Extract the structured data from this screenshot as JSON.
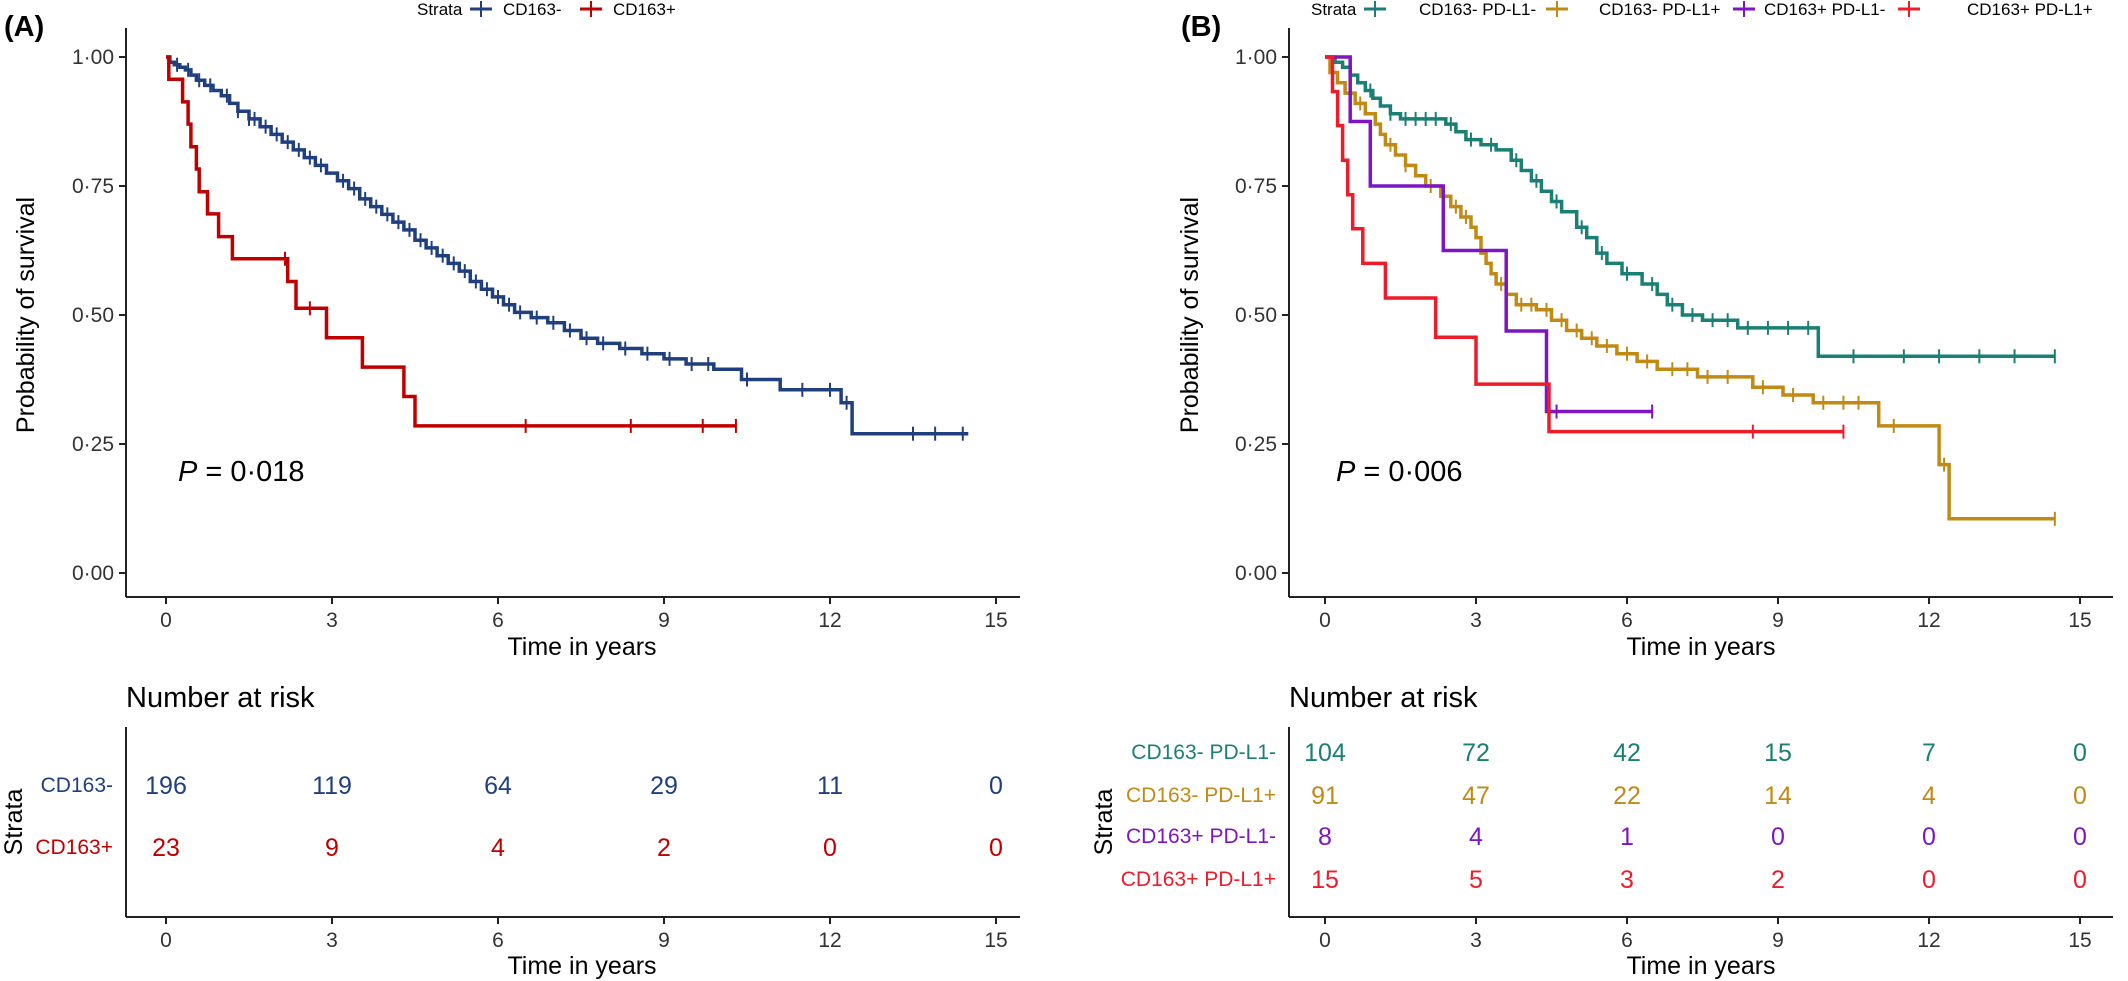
{
  "chart_data": [
    {
      "type": "line",
      "subtype": "kaplan-meier",
      "panel_label": "(A)",
      "xlabel": "Time in years",
      "ylabel": "Probability of survival",
      "xlim": [
        0,
        15
      ],
      "ylim": [
        0,
        1
      ],
      "xticks": [
        "0",
        "3",
        "6",
        "9",
        "12",
        "15"
      ],
      "yticks": [
        "0·00",
        "0·25",
        "0·50",
        "0·75",
        "1·00"
      ],
      "grid": false,
      "legend_title": "Strata",
      "legend_position": "top",
      "p_value_label": "P",
      "p_value_text": " = 0·018",
      "series": [
        {
          "name": "CD163-",
          "color": "#1f3f7f",
          "steps": [
            [
              0,
              1.0
            ],
            [
              0.07,
              0.99
            ],
            [
              0.15,
              0.985
            ],
            [
              0.25,
              0.98
            ],
            [
              0.35,
              0.975
            ],
            [
              0.45,
              0.965
            ],
            [
              0.55,
              0.955
            ],
            [
              0.7,
              0.945
            ],
            [
              0.85,
              0.935
            ],
            [
              1.0,
              0.925
            ],
            [
              1.15,
              0.91
            ],
            [
              1.3,
              0.895
            ],
            [
              1.5,
              0.88
            ],
            [
              1.7,
              0.865
            ],
            [
              1.9,
              0.85
            ],
            [
              2.1,
              0.835
            ],
            [
              2.3,
              0.82
            ],
            [
              2.5,
              0.805
            ],
            [
              2.7,
              0.79
            ],
            [
              2.9,
              0.775
            ],
            [
              3.1,
              0.76
            ],
            [
              3.3,
              0.745
            ],
            [
              3.5,
              0.725
            ],
            [
              3.7,
              0.71
            ],
            [
              3.9,
              0.695
            ],
            [
              4.1,
              0.68
            ],
            [
              4.3,
              0.665
            ],
            [
              4.5,
              0.645
            ],
            [
              4.7,
              0.63
            ],
            [
              4.9,
              0.615
            ],
            [
              5.1,
              0.6
            ],
            [
              5.3,
              0.585
            ],
            [
              5.5,
              0.565
            ],
            [
              5.7,
              0.55
            ],
            [
              5.9,
              0.535
            ],
            [
              6.1,
              0.52
            ],
            [
              6.3,
              0.505
            ],
            [
              6.6,
              0.495
            ],
            [
              6.9,
              0.485
            ],
            [
              7.2,
              0.47
            ],
            [
              7.5,
              0.455
            ],
            [
              7.8,
              0.445
            ],
            [
              8.2,
              0.435
            ],
            [
              8.6,
              0.425
            ],
            [
              9.0,
              0.415
            ],
            [
              9.4,
              0.405
            ],
            [
              9.9,
              0.395
            ],
            [
              10.4,
              0.375
            ],
            [
              11.1,
              0.355
            ],
            [
              12.2,
              0.33
            ],
            [
              12.4,
              0.27
            ],
            [
              14.5,
              0.27
            ]
          ],
          "censor": [
            0.2,
            0.4,
            0.6,
            0.8,
            1.1,
            1.3,
            1.5,
            1.6,
            1.8,
            2.0,
            2.2,
            2.4,
            2.6,
            2.8,
            3.2,
            3.4,
            3.6,
            3.8,
            4.0,
            4.2,
            4.4,
            4.6,
            4.8,
            5.0,
            5.2,
            5.4,
            5.6,
            5.8,
            6.0,
            6.2,
            6.4,
            6.7,
            7.0,
            7.3,
            7.6,
            7.9,
            8.3,
            8.7,
            9.1,
            9.5,
            9.8,
            10.5,
            11.5,
            12.0,
            12.3,
            13.5,
            13.9,
            14.4
          ]
        },
        {
          "name": "CD163+",
          "color": "#c00000",
          "steps": [
            [
              0,
              1.0
            ],
            [
              0.05,
              0.957
            ],
            [
              0.3,
              0.913
            ],
            [
              0.4,
              0.87
            ],
            [
              0.45,
              0.826
            ],
            [
              0.55,
              0.783
            ],
            [
              0.6,
              0.739
            ],
            [
              0.75,
              0.696
            ],
            [
              0.95,
              0.652
            ],
            [
              1.2,
              0.609
            ],
            [
              2.2,
              0.565
            ],
            [
              2.35,
              0.513
            ],
            [
              2.9,
              0.456
            ],
            [
              3.55,
              0.399
            ],
            [
              4.3,
              0.342
            ],
            [
              4.5,
              0.285
            ],
            [
              10.3,
              0.285
            ]
          ],
          "censor": [
            2.15,
            2.6,
            6.5,
            8.4,
            9.7,
            10.3
          ]
        }
      ],
      "risk_table": {
        "title": "Number at risk",
        "strata_title": "Strata",
        "times": [
          "0",
          "3",
          "6",
          "9",
          "12",
          "15"
        ],
        "rows": [
          {
            "label": "CD163-",
            "color": "#1f3f7f",
            "values": [
              "196",
              "119",
              "64",
              "29",
              "11",
              "0"
            ]
          },
          {
            "label": "CD163+",
            "color": "#c00000",
            "values": [
              "23",
              "9",
              "4",
              "2",
              "0",
              "0"
            ]
          }
        ],
        "xlabel": "Time in years"
      }
    },
    {
      "type": "line",
      "subtype": "kaplan-meier",
      "panel_label": "(B)",
      "xlabel": "Time in years",
      "ylabel": "Probability of survival",
      "xlim": [
        0,
        15
      ],
      "ylim": [
        0,
        1
      ],
      "xticks": [
        "0",
        "3",
        "6",
        "9",
        "12",
        "15"
      ],
      "yticks": [
        "0·00",
        "0·25",
        "0·50",
        "0·75",
        "1·00"
      ],
      "grid": false,
      "legend_title": "Strata",
      "legend_position": "top",
      "p_value_label": "P",
      "p_value_text": " = 0·006",
      "series": [
        {
          "name": "CD163- PD-L1-",
          "color": "#1a7f74",
          "steps": [
            [
              0,
              1.0
            ],
            [
              0.2,
              0.99
            ],
            [
              0.35,
              0.98
            ],
            [
              0.5,
              0.965
            ],
            [
              0.65,
              0.95
            ],
            [
              0.8,
              0.935
            ],
            [
              0.95,
              0.92
            ],
            [
              1.1,
              0.905
            ],
            [
              1.3,
              0.89
            ],
            [
              1.5,
              0.88
            ],
            [
              2.4,
              0.87
            ],
            [
              2.6,
              0.855
            ],
            [
              2.8,
              0.84
            ],
            [
              3.1,
              0.83
            ],
            [
              3.4,
              0.82
            ],
            [
              3.7,
              0.8
            ],
            [
              3.9,
              0.78
            ],
            [
              4.1,
              0.76
            ],
            [
              4.3,
              0.74
            ],
            [
              4.5,
              0.72
            ],
            [
              4.7,
              0.7
            ],
            [
              5.0,
              0.67
            ],
            [
              5.2,
              0.65
            ],
            [
              5.4,
              0.62
            ],
            [
              5.6,
              0.6
            ],
            [
              5.9,
              0.58
            ],
            [
              6.3,
              0.56
            ],
            [
              6.6,
              0.54
            ],
            [
              6.8,
              0.52
            ],
            [
              7.1,
              0.5
            ],
            [
              7.5,
              0.49
            ],
            [
              8.2,
              0.475
            ],
            [
              9.8,
              0.42
            ],
            [
              14.5,
              0.42
            ]
          ],
          "censor": [
            0.5,
            0.9,
            1.3,
            1.6,
            1.8,
            2.0,
            2.2,
            2.5,
            2.9,
            3.3,
            3.8,
            4.2,
            4.6,
            5.1,
            5.5,
            6.0,
            6.5,
            6.9,
            7.3,
            7.7,
            8.0,
            8.4,
            8.8,
            9.2,
            9.6,
            10.5,
            11.5,
            12.2,
            13.0,
            13.7,
            14.5
          ]
        },
        {
          "name": "CD163- PD-L1+",
          "color": "#c08a14",
          "steps": [
            [
              0,
              1.0
            ],
            [
              0.1,
              0.97
            ],
            [
              0.25,
              0.95
            ],
            [
              0.4,
              0.93
            ],
            [
              0.6,
              0.91
            ],
            [
              0.8,
              0.89
            ],
            [
              1.0,
              0.87
            ],
            [
              1.1,
              0.85
            ],
            [
              1.2,
              0.83
            ],
            [
              1.4,
              0.81
            ],
            [
              1.6,
              0.79
            ],
            [
              1.8,
              0.77
            ],
            [
              2.0,
              0.75
            ],
            [
              2.3,
              0.73
            ],
            [
              2.5,
              0.71
            ],
            [
              2.7,
              0.69
            ],
            [
              2.9,
              0.67
            ],
            [
              3.0,
              0.65
            ],
            [
              3.1,
              0.62
            ],
            [
              3.2,
              0.6
            ],
            [
              3.3,
              0.58
            ],
            [
              3.4,
              0.56
            ],
            [
              3.6,
              0.54
            ],
            [
              3.8,
              0.52
            ],
            [
              4.2,
              0.51
            ],
            [
              4.5,
              0.49
            ],
            [
              4.8,
              0.47
            ],
            [
              5.1,
              0.455
            ],
            [
              5.4,
              0.44
            ],
            [
              5.8,
              0.425
            ],
            [
              6.2,
              0.41
            ],
            [
              6.6,
              0.395
            ],
            [
              7.4,
              0.38
            ],
            [
              8.5,
              0.36
            ],
            [
              9.1,
              0.345
            ],
            [
              9.7,
              0.33
            ],
            [
              11.0,
              0.285
            ],
            [
              12.2,
              0.21
            ],
            [
              12.4,
              0.105
            ],
            [
              14.5,
              0.105
            ]
          ],
          "censor": [
            0.7,
            1.3,
            1.6,
            2.1,
            2.6,
            2.8,
            3.5,
            3.9,
            4.1,
            4.4,
            4.7,
            5.0,
            5.3,
            5.6,
            6.0,
            6.4,
            6.9,
            7.2,
            7.6,
            8.0,
            8.7,
            9.3,
            9.9,
            10.3,
            10.6,
            11.3,
            12.3,
            14.5
          ]
        },
        {
          "name": "CD163+ PD-L1-",
          "color": "#7d16c2",
          "steps": [
            [
              0,
              1.0
            ],
            [
              0.5,
              0.875
            ],
            [
              0.9,
              0.75
            ],
            [
              2.35,
              0.625
            ],
            [
              3.6,
              0.469
            ],
            [
              4.4,
              0.313
            ],
            [
              6.5,
              0.313
            ]
          ],
          "censor": [
            4.6,
            6.5
          ]
        },
        {
          "name": "CD163+ PD-L1+",
          "color": "#ee1c2a",
          "steps": [
            [
              0,
              1.0
            ],
            [
              0.15,
              0.933
            ],
            [
              0.25,
              0.867
            ],
            [
              0.35,
              0.8
            ],
            [
              0.45,
              0.733
            ],
            [
              0.55,
              0.667
            ],
            [
              0.75,
              0.6
            ],
            [
              1.2,
              0.533
            ],
            [
              2.2,
              0.457
            ],
            [
              3.0,
              0.366
            ],
            [
              4.3,
              0.366
            ],
            [
              4.45,
              0.274
            ],
            [
              10.3,
              0.274
            ]
          ],
          "censor": [
            8.5,
            10.3
          ]
        }
      ],
      "risk_table": {
        "title": "Number at risk",
        "strata_title": "Strata",
        "times": [
          "0",
          "3",
          "6",
          "9",
          "12",
          "15"
        ],
        "rows": [
          {
            "label": "CD163- PD-L1-",
            "color": "#1a7f74",
            "values": [
              "104",
              "72",
              "42",
              "15",
              "7",
              "0"
            ]
          },
          {
            "label": "CD163- PD-L1+",
            "color": "#c08a14",
            "values": [
              "91",
              "47",
              "22",
              "14",
              "4",
              "0"
            ]
          },
          {
            "label": "CD163+ PD-L1-",
            "color": "#7d16c2",
            "values": [
              "8",
              "4",
              "1",
              "0",
              "0",
              "0"
            ]
          },
          {
            "label": "CD163+ PD-L1+",
            "color": "#ee1c2a",
            "values": [
              "15",
              "5",
              "3",
              "2",
              "0",
              "0"
            ]
          }
        ],
        "xlabel": "Time in years"
      }
    }
  ]
}
